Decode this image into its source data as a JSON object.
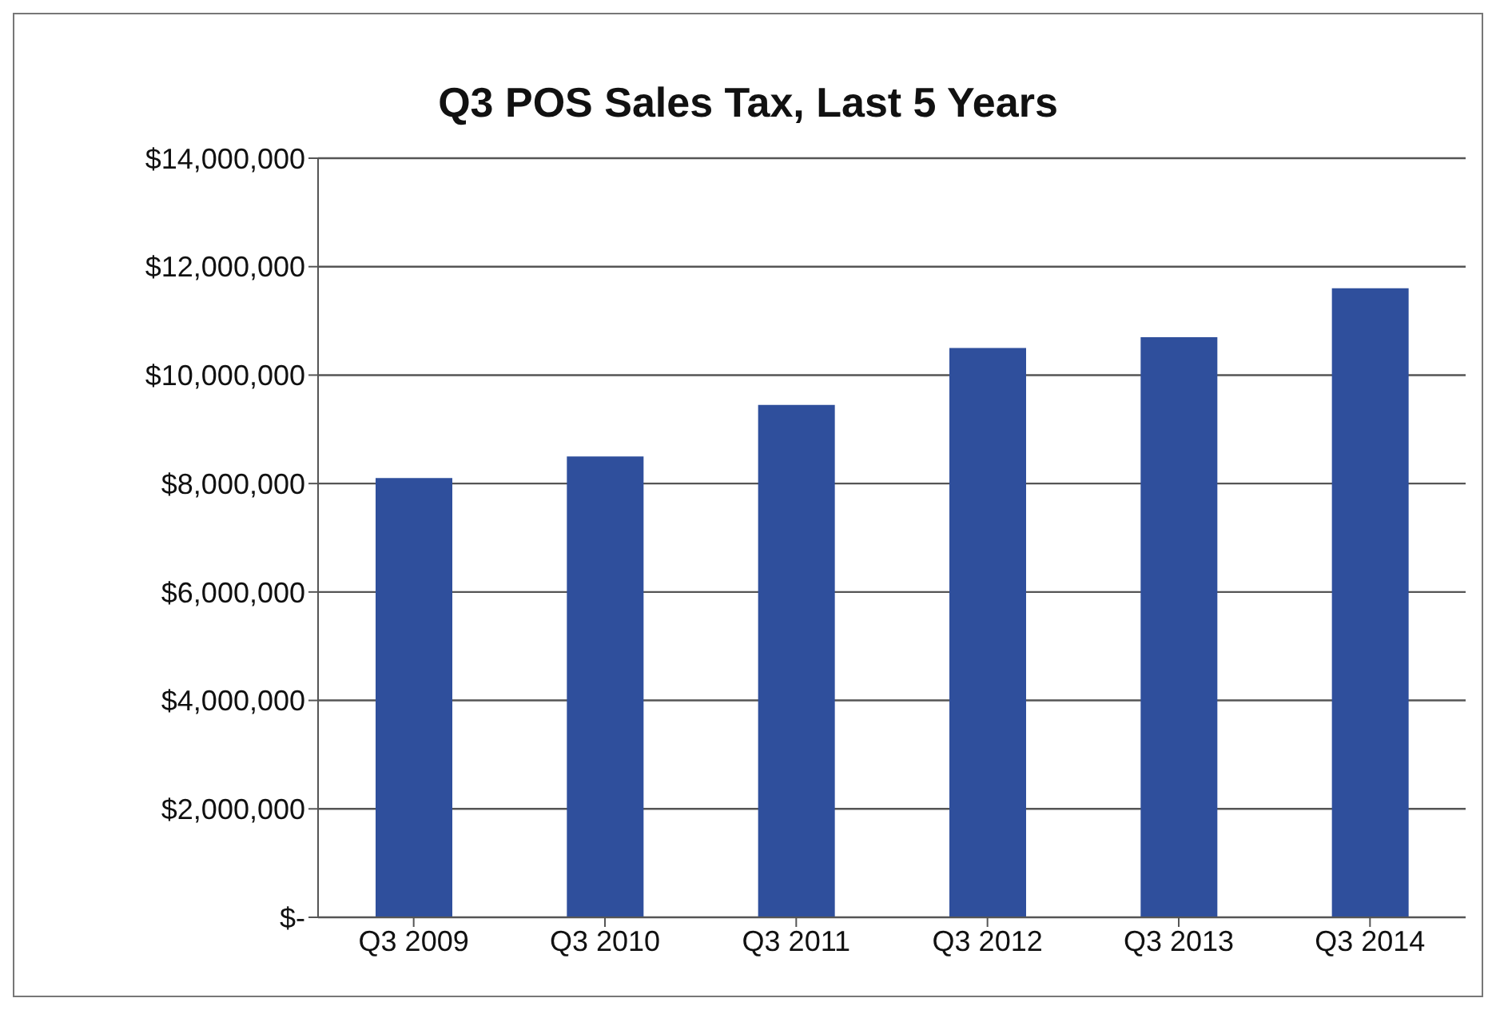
{
  "chart_data": {
    "type": "bar",
    "title": "Q3 POS Sales Tax, Last 5 Years",
    "categories": [
      "Q3 2009",
      "Q3 2010",
      "Q3 2011",
      "Q3 2012",
      "Q3 2013",
      "Q3 2014"
    ],
    "values": [
      8100000,
      8500000,
      9450000,
      10500000,
      10700000,
      11600000
    ],
    "color": "#2f4f9c",
    "ylim": [
      0,
      14000000
    ],
    "yticks": [
      {
        "value": 0,
        "label": "$-"
      },
      {
        "value": 2000000,
        "label": "$2,000,000"
      },
      {
        "value": 4000000,
        "label": "$4,000,000"
      },
      {
        "value": 6000000,
        "label": "$6,000,000"
      },
      {
        "value": 8000000,
        "label": "$8,000,000"
      },
      {
        "value": 10000000,
        "label": "$10,000,000"
      },
      {
        "value": 12000000,
        "label": "$12,000,000"
      },
      {
        "value": 14000000,
        "label": "$14,000,000"
      }
    ],
    "grid": "y"
  }
}
